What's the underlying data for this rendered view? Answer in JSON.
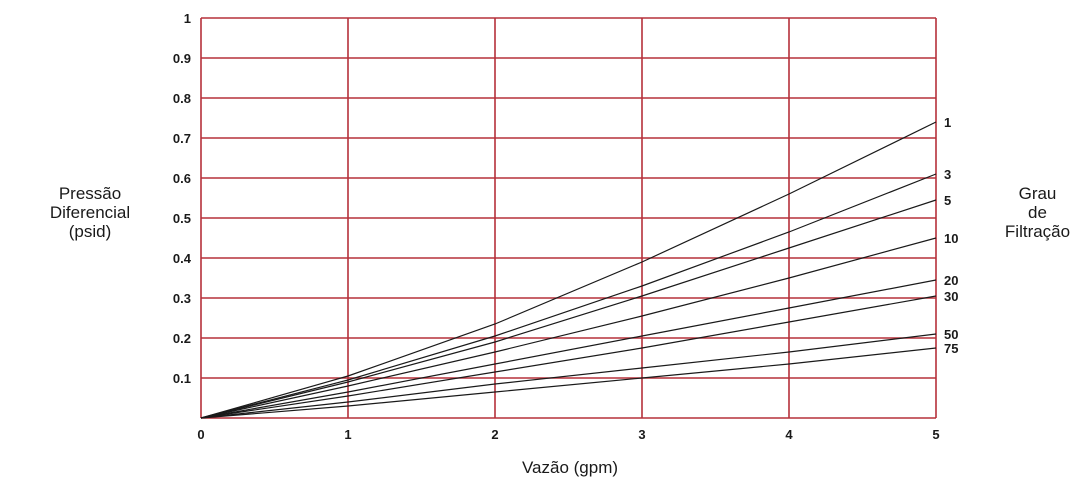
{
  "chart_data": {
    "type": "line",
    "title": "",
    "xlabel": "Vazão (gpm)",
    "ylabel_lines": [
      "Pressão",
      "Diferencial",
      "(psid)"
    ],
    "legend_title_lines": [
      "Grau",
      "de",
      "Filtração"
    ],
    "xlim": [
      0,
      5
    ],
    "ylim": [
      0,
      1
    ],
    "x_ticks": [
      "0",
      "1",
      "2",
      "3",
      "4",
      "5"
    ],
    "y_ticks": [
      "0.1",
      "0.2",
      "0.3",
      "0.4",
      "0.5",
      "0.6",
      "0.7",
      "0.8",
      "0.9",
      "1"
    ],
    "grid": true,
    "grid_color": "#b5303a",
    "line_color": "#1a1a1a",
    "legend_placement": "right end of lines",
    "series": [
      {
        "name": "1",
        "x": [
          0,
          1,
          2,
          3,
          4,
          5
        ],
        "y": [
          0,
          0.105,
          0.235,
          0.39,
          0.56,
          0.74
        ]
      },
      {
        "name": "3",
        "x": [
          0,
          1,
          2,
          3,
          4,
          5
        ],
        "y": [
          0,
          0.095,
          0.205,
          0.33,
          0.465,
          0.61
        ]
      },
      {
        "name": "5",
        "x": [
          0,
          1,
          2,
          3,
          4,
          5
        ],
        "y": [
          0,
          0.09,
          0.19,
          0.305,
          0.425,
          0.545
        ]
      },
      {
        "name": "10",
        "x": [
          0,
          1,
          2,
          3,
          4,
          5
        ],
        "y": [
          0,
          0.08,
          0.165,
          0.255,
          0.35,
          0.45
        ]
      },
      {
        "name": "20",
        "x": [
          0,
          1,
          2,
          3,
          4,
          5
        ],
        "y": [
          0,
          0.065,
          0.135,
          0.205,
          0.275,
          0.345
        ]
      },
      {
        "name": "30",
        "x": [
          0,
          1,
          2,
          3,
          4,
          5
        ],
        "y": [
          0,
          0.055,
          0.115,
          0.175,
          0.24,
          0.305
        ]
      },
      {
        "name": "50",
        "x": [
          0,
          1,
          2,
          3,
          4,
          5
        ],
        "y": [
          0,
          0.04,
          0.085,
          0.125,
          0.165,
          0.21
        ]
      },
      {
        "name": "75",
        "x": [
          0,
          1,
          2,
          3,
          4,
          5
        ],
        "y": [
          0,
          0.03,
          0.065,
          0.1,
          0.135,
          0.175
        ]
      }
    ]
  }
}
